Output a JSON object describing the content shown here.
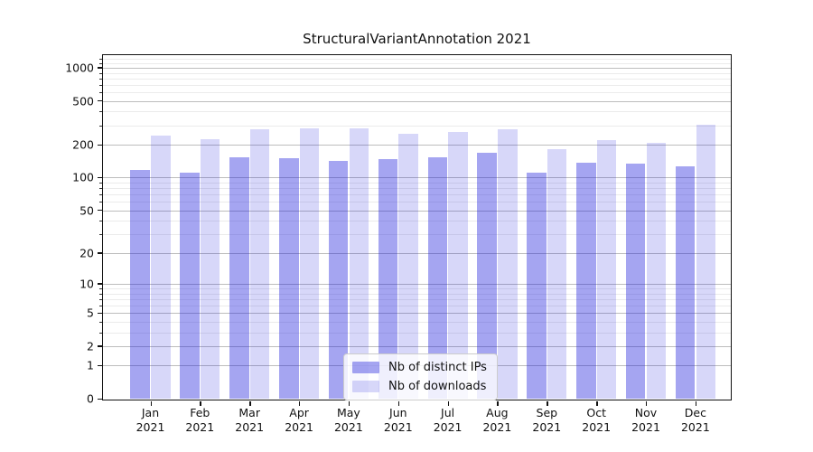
{
  "title": "StructuralVariantAnnotation 2021",
  "chart_data": {
    "type": "bar",
    "title": "StructuralVariantAnnotation 2021",
    "categories": [
      "Jan 2021",
      "Feb 2021",
      "Mar 2021",
      "Apr 2021",
      "May 2021",
      "Jun 2021",
      "Jul 2021",
      "Aug 2021",
      "Sep 2021",
      "Oct 2021",
      "Nov 2021",
      "Dec 2021"
    ],
    "series": [
      {
        "name": "Nb of distinct IPs",
        "color": "rgba(30,30,220,0.40)",
        "values": [
          118,
          111,
          153,
          150,
          143,
          148,
          152,
          170,
          110,
          137,
          135,
          126
        ]
      },
      {
        "name": "Nb of downloads",
        "color": "rgba(30,30,220,0.175)",
        "values": [
          243,
          223,
          274,
          281,
          280,
          251,
          259,
          278,
          181,
          220,
          206,
          303
        ]
      }
    ],
    "xlabel": "",
    "ylabel": "",
    "y_scale": "log10(value+1)",
    "y_ticks": [
      1000,
      500,
      200,
      100,
      50,
      20,
      10,
      5,
      2,
      1,
      0
    ],
    "ylim": [
      0,
      1300
    ],
    "grid": true,
    "legend_position": "lower center"
  },
  "colors": {
    "bar_distinct_ips_on_white": "#a5a5f0",
    "bar_downloads_on_white": "#d8d8f8",
    "major_grid": "#bdbdbd",
    "minor_grid": "#ebebeb",
    "spine": "#111111"
  }
}
